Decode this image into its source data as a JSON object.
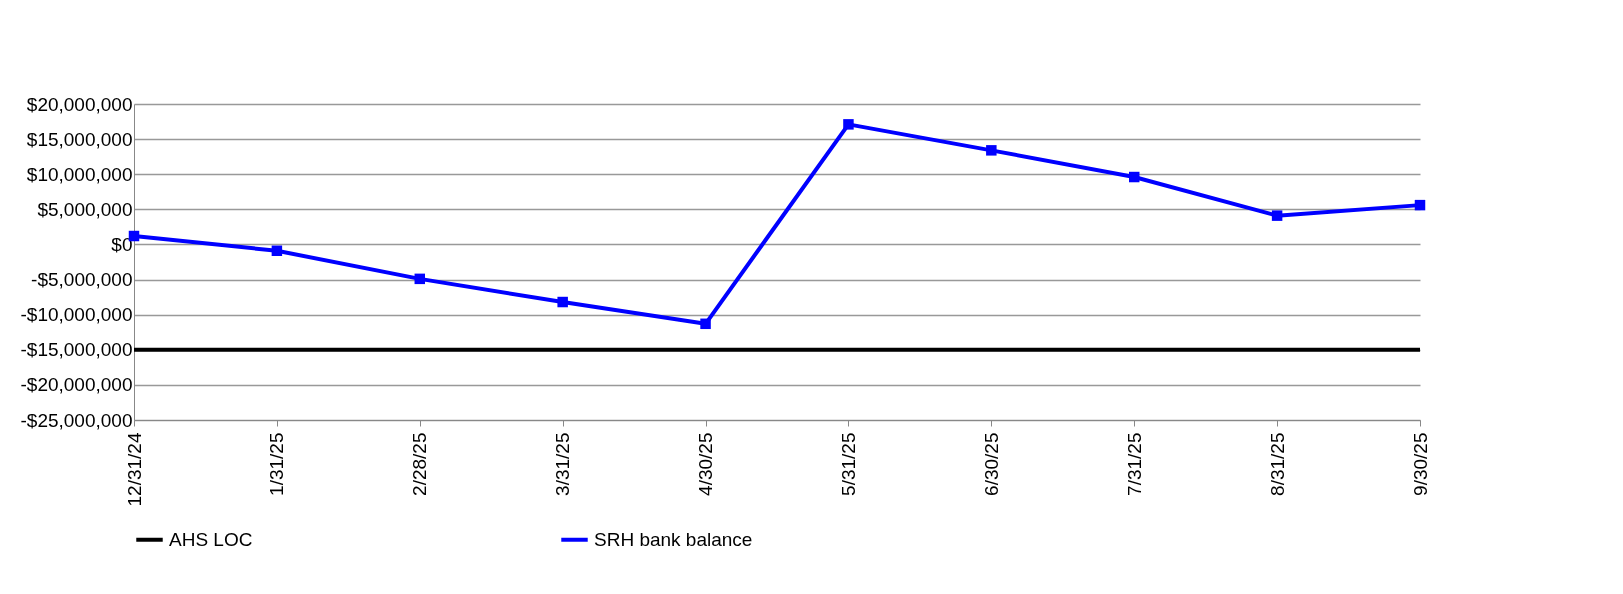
{
  "chart_data": {
    "type": "line",
    "categories": [
      "12/31/24",
      "1/31/25",
      "2/28/25",
      "3/31/25",
      "4/30/25",
      "5/31/25",
      "6/30/25",
      "7/31/25",
      "8/31/25",
      "9/30/25"
    ],
    "series": [
      {
        "name": "AHS LOC",
        "color": "#000000",
        "marker": "none",
        "values": [
          -15000000,
          -15000000,
          -15000000,
          -15000000,
          -15000000,
          -15000000,
          -15000000,
          -15000000,
          -15000000,
          -15000000
        ]
      },
      {
        "name": "SRH bank balance",
        "color": "#0000ff",
        "marker": "square",
        "values": [
          1200000,
          -900000,
          -4900000,
          -8200000,
          -11300000,
          17100000,
          13400000,
          9600000,
          4100000,
          5600000
        ]
      }
    ],
    "ylim": [
      -25000000,
      20000000
    ],
    "yticks": [
      {
        "value": -25000000,
        "label": "-$25,000,000"
      },
      {
        "value": -20000000,
        "label": "-$20,000,000"
      },
      {
        "value": -15000000,
        "label": "-$15,000,000"
      },
      {
        "value": -10000000,
        "label": "-$10,000,000"
      },
      {
        "value": -5000000,
        "label": "-$5,000,000"
      },
      {
        "value": 0,
        "label": "$0"
      },
      {
        "value": 5000000,
        "label": "$5,000,000"
      },
      {
        "value": 10000000,
        "label": "$10,000,000"
      },
      {
        "value": 15000000,
        "label": "$15,000,000"
      },
      {
        "value": 20000000,
        "label": "$20,000,000"
      }
    ],
    "grid": "y",
    "legend": "bottom",
    "line_style": "solid"
  }
}
